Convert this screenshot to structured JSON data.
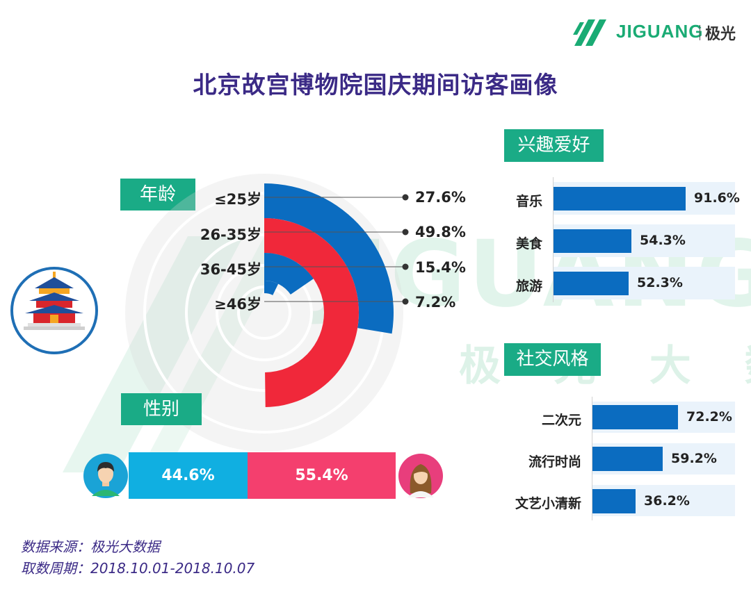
{
  "brand": {
    "name": "JIGUANG",
    "name_cn": "极光",
    "watermark_cn": "极 光 大 数 据"
  },
  "title": "北京故宫博物院国庆期间访客画像",
  "colors": {
    "teal": "#1aab86",
    "blue": "#0b6cc0",
    "red": "#f0283a",
    "male": "#10afe1",
    "female": "#f43f6e",
    "title": "#3b2a86"
  },
  "chart_data": [
    {
      "type": "radial-bar",
      "name": "age",
      "title": "年龄",
      "categories": [
        "≤25岁",
        "26-35岁",
        "36-45岁",
        "≥46岁"
      ],
      "values": [
        27.6,
        49.8,
        15.4,
        7.2
      ],
      "value_labels": [
        "27.6%",
        "49.8%",
        "15.4%",
        "7.2%"
      ],
      "colors": [
        "#0b6cc0",
        "#f0283a",
        "#0b6cc0",
        "#0b6cc0"
      ],
      "max": 100
    },
    {
      "type": "stacked-bar",
      "name": "gender",
      "title": "性别",
      "series": [
        {
          "name": "male",
          "value": 44.6,
          "label": "44.6%"
        },
        {
          "name": "female",
          "value": 55.4,
          "label": "55.4%"
        }
      ]
    },
    {
      "type": "bar",
      "orientation": "horizontal",
      "name": "interests",
      "title": "兴趣爱好",
      "categories": [
        "音乐",
        "美食",
        "旅游"
      ],
      "values": [
        91.6,
        54.3,
        52.3
      ],
      "value_labels": [
        "91.6%",
        "54.3%",
        "52.3%"
      ],
      "xlim": [
        0,
        100
      ]
    },
    {
      "type": "bar",
      "orientation": "horizontal",
      "name": "social",
      "title": "社交风格",
      "categories": [
        "二次元",
        "流行时尚",
        "文艺小清新"
      ],
      "values": [
        72.2,
        59.2,
        36.2
      ],
      "value_labels": [
        "72.2%",
        "59.2%",
        "36.2%"
      ],
      "xlim": [
        0,
        100
      ]
    }
  ],
  "footer": {
    "source": "数据来源：极光大数据",
    "period": "取数周期：2018.10.01-2018.10.07"
  }
}
